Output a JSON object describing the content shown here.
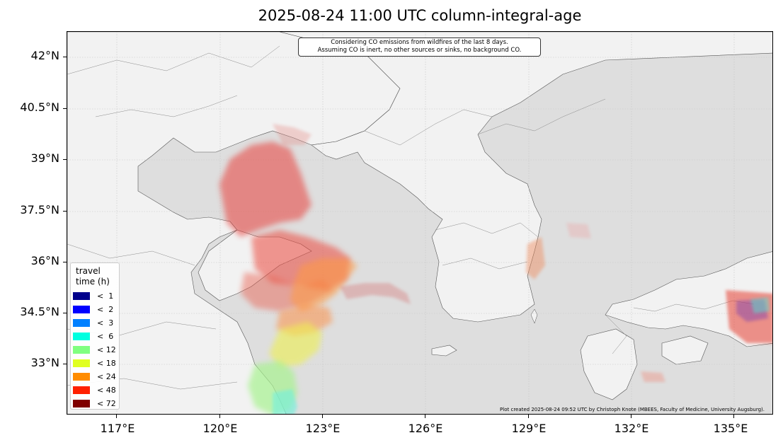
{
  "title": "2025-08-24 11:00 UTC column-integral-age",
  "note": {
    "line1": "Considering CO emissions from wildfires of the last 8 days.",
    "line2": "Assuming CO is inert, no other sources or sinks, no background CO."
  },
  "credit": "Plot created 2025-08-24 09:52 UTC by Christoph Knote (MBEES, Faculty of Medicine, University Augsburg).",
  "axes": {
    "lat_ticks": [
      "42°N",
      "40.5°N",
      "39°N",
      "37.5°N",
      "36°N",
      "34.5°N",
      "33°N"
    ],
    "lon_ticks": [
      "117°E",
      "120°E",
      "123°E",
      "126°E",
      "129°E",
      "132°E",
      "135°E"
    ],
    "lat_values": [
      42,
      40.5,
      39,
      37.5,
      36,
      34.5,
      33
    ],
    "lon_values": [
      117,
      120,
      123,
      126,
      129,
      132,
      135
    ],
    "lon_range": [
      115.8,
      136.2
    ],
    "lat_range": [
      31.6,
      42.7
    ]
  },
  "legend": {
    "title_line1": "travel",
    "title_line2": "time (h)",
    "items": [
      {
        "label": "<  1",
        "color": "#00008b"
      },
      {
        "label": "<  2",
        "color": "#0000ff"
      },
      {
        "label": "<  3",
        "color": "#0080ff"
      },
      {
        "label": "<  6",
        "color": "#00ffe0"
      },
      {
        "label": "< 12",
        "color": "#80ff80"
      },
      {
        "label": "< 18",
        "color": "#e0ff20"
      },
      {
        "label": "< 24",
        "color": "#ff8c00"
      },
      {
        "label": "< 48",
        "color": "#ff2000"
      },
      {
        "label": "< 72",
        "color": "#800000"
      }
    ]
  },
  "colors": {
    "land": "#f2f2f2",
    "sea": "#dedede",
    "border": "#555555",
    "grid": "#c8c8c8"
  }
}
